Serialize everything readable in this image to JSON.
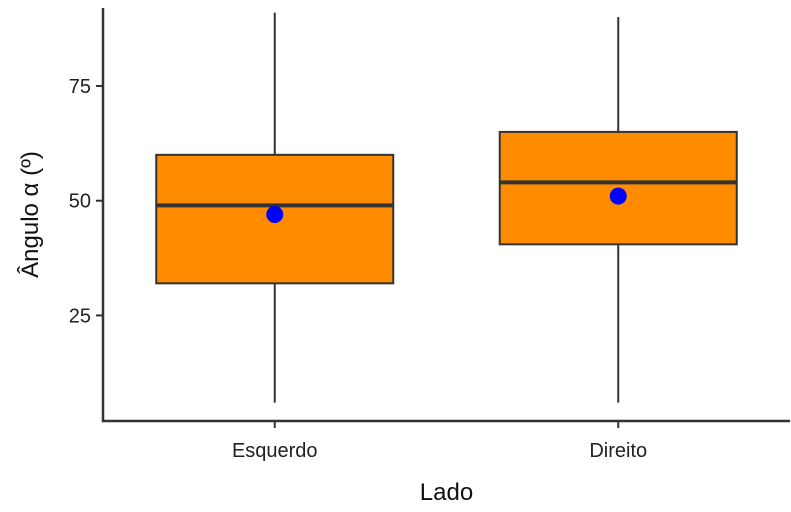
{
  "chart_data": {
    "type": "box",
    "title": "",
    "xlabel": "Lado",
    "ylabel": "Ângulo α (º)",
    "ylim": [
      2,
      92
    ],
    "y_ticks": [
      25,
      50,
      75
    ],
    "grid": false,
    "categories": [
      "Esquerdo",
      "Direito"
    ],
    "boxes": [
      {
        "category": "Esquerdo",
        "whisker_low": 6,
        "q1": 32,
        "median": 49,
        "q3": 60,
        "whisker_high": 91,
        "mean": 47
      },
      {
        "category": "Direito",
        "whisker_low": 6,
        "q1": 40.5,
        "median": 54,
        "q3": 65,
        "whisker_high": 90,
        "mean": 51
      }
    ],
    "colors": {
      "box_fill": "#FF8C00",
      "box_stroke": "#333333",
      "median": "#333333",
      "whisker": "#333333",
      "mean_point": "#0000FF",
      "axis": "#333333"
    }
  }
}
